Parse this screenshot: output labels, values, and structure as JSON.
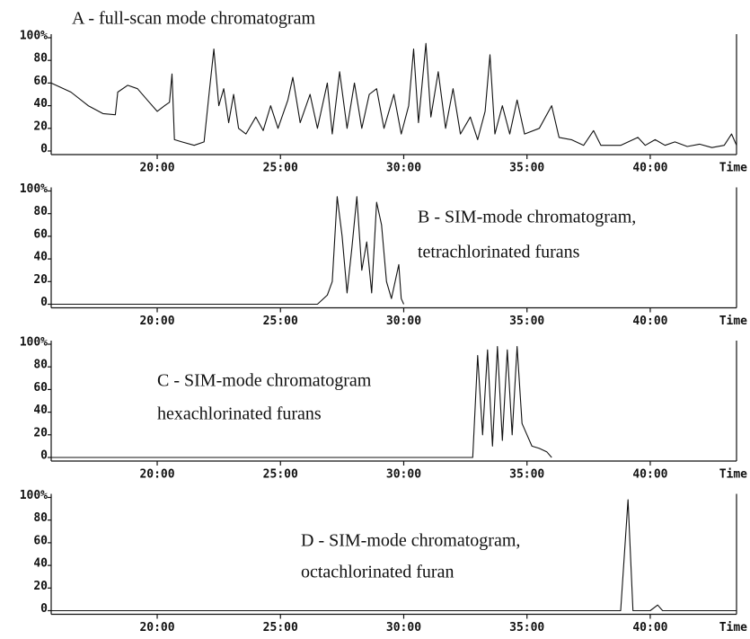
{
  "chart_data": [
    {
      "type": "line",
      "annotations": [
        "A - full-scan mode chromatogram"
      ],
      "xlabel": "Time",
      "x": [
        15.7,
        16.5,
        17.2,
        17.8,
        18.3,
        18.4,
        18.8,
        19.2,
        19.6,
        20.0,
        20.3,
        20.5,
        20.6,
        20.7,
        21.0,
        21.5,
        21.9,
        22.1,
        22.3,
        22.5,
        22.7,
        22.9,
        23.1,
        23.3,
        23.6,
        24.0,
        24.3,
        24.6,
        24.9,
        25.3,
        25.5,
        25.8,
        26.2,
        26.5,
        26.9,
        27.1,
        27.4,
        27.7,
        28.0,
        28.3,
        28.6,
        28.9,
        29.2,
        29.6,
        29.9,
        30.2,
        30.4,
        30.6,
        30.9,
        31.1,
        31.4,
        31.7,
        32.0,
        32.3,
        32.7,
        33.0,
        33.3,
        33.5,
        33.7,
        34.0,
        34.3,
        34.6,
        34.9,
        35.5,
        36.0,
        36.3,
        36.8,
        37.3,
        37.7,
        38.0,
        38.8,
        39.5,
        39.8,
        40.2,
        40.6,
        41.0,
        41.5,
        42.0,
        42.5,
        43.0,
        43.3,
        43.5
      ],
      "values": [
        60,
        52,
        40,
        33,
        32,
        52,
        58,
        55,
        45,
        35,
        40,
        43,
        68,
        10,
        8,
        5,
        8,
        50,
        90,
        40,
        55,
        25,
        50,
        20,
        15,
        30,
        18,
        40,
        20,
        45,
        65,
        25,
        50,
        20,
        60,
        15,
        70,
        20,
        60,
        20,
        50,
        55,
        20,
        50,
        15,
        40,
        90,
        25,
        95,
        30,
        70,
        20,
        55,
        15,
        30,
        10,
        35,
        85,
        15,
        40,
        15,
        45,
        15,
        20,
        40,
        12,
        10,
        5,
        18,
        5,
        5,
        12,
        5,
        10,
        5,
        8,
        4,
        6,
        3,
        5,
        15,
        5
      ],
      "xlim": [
        15.7,
        43.5
      ],
      "ylim": [
        0,
        100
      ],
      "xticks": [
        {
          "value": 20,
          "label": "20:00"
        },
        {
          "value": 25,
          "label": "25:00"
        },
        {
          "value": 30,
          "label": "30:00"
        },
        {
          "value": 35,
          "label": "35:00"
        },
        {
          "value": 40,
          "label": "40:00"
        }
      ],
      "yticks": [
        0,
        20,
        40,
        60,
        80,
        {
          "value": 100,
          "label": "100%"
        }
      ],
      "color": "#111111"
    },
    {
      "type": "line",
      "annotations": [
        "B - SIM-mode chromatogram,",
        "tetrachlorinated furans"
      ],
      "xlabel": "Time",
      "x": [
        15.7,
        26.5,
        26.9,
        27.1,
        27.3,
        27.5,
        27.7,
        27.9,
        28.1,
        28.3,
        28.5,
        28.7,
        28.9,
        29.1,
        29.3,
        29.5,
        29.8,
        29.9,
        30.0
      ],
      "values": [
        0,
        0,
        8,
        20,
        95,
        60,
        10,
        50,
        95,
        30,
        55,
        10,
        90,
        70,
        20,
        5,
        35,
        5,
        0
      ],
      "xlim": [
        15.7,
        43.5
      ],
      "ylim": [
        0,
        100
      ],
      "xticks": [
        {
          "value": 20,
          "label": "20:00"
        },
        {
          "value": 25,
          "label": "25:00"
        },
        {
          "value": 30,
          "label": "30:00"
        },
        {
          "value": 35,
          "label": "35:00"
        },
        {
          "value": 40,
          "label": "40:00"
        }
      ],
      "yticks": [
        0,
        20,
        40,
        60,
        80,
        {
          "value": 100,
          "label": "100%"
        }
      ],
      "color": "#111111"
    },
    {
      "type": "line",
      "annotations": [
        "C - SIM-mode chromatogram",
        " hexachlorinated furans"
      ],
      "xlabel": "Time",
      "x": [
        15.7,
        32.8,
        33.0,
        33.2,
        33.4,
        33.6,
        33.8,
        34.0,
        34.2,
        34.4,
        34.6,
        34.8,
        35.0,
        35.2,
        35.5,
        35.8,
        36.0
      ],
      "values": [
        0,
        0,
        90,
        20,
        95,
        10,
        98,
        15,
        95,
        20,
        98,
        30,
        20,
        10,
        8,
        5,
        0
      ],
      "xlim": [
        15.7,
        43.5
      ],
      "ylim": [
        0,
        100
      ],
      "xticks": [
        {
          "value": 20,
          "label": "20:00"
        },
        {
          "value": 25,
          "label": "25:00"
        },
        {
          "value": 30,
          "label": "30:00"
        },
        {
          "value": 35,
          "label": "35:00"
        },
        {
          "value": 40,
          "label": "40:00"
        }
      ],
      "yticks": [
        0,
        20,
        40,
        60,
        80,
        {
          "value": 100,
          "label": "100%"
        }
      ],
      "color": "#111111"
    },
    {
      "type": "line",
      "annotations": [
        "D - SIM-mode chromatogram,",
        "octachlorinated furan"
      ],
      "xlabel": "Time",
      "x": [
        15.7,
        38.8,
        39.1,
        39.3,
        40.0,
        40.3,
        40.5,
        43.5
      ],
      "values": [
        0,
        0,
        98,
        0,
        0,
        5,
        0,
        0
      ],
      "xlim": [
        15.7,
        43.5
      ],
      "ylim": [
        0,
        100
      ],
      "xticks": [
        {
          "value": 20,
          "label": "20:00"
        },
        {
          "value": 25,
          "label": "25:00"
        },
        {
          "value": 30,
          "label": "30:00"
        },
        {
          "value": 35,
          "label": "35:00"
        },
        {
          "value": 40,
          "label": "40:00"
        }
      ],
      "yticks": [
        0,
        20,
        40,
        60,
        80,
        {
          "value": 100,
          "label": "100%"
        }
      ],
      "color": "#111111"
    }
  ]
}
